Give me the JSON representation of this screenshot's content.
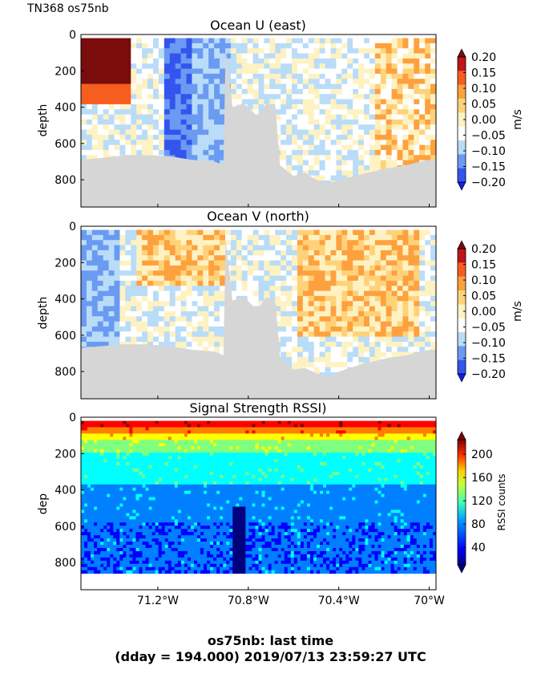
{
  "header": {
    "cruise": "TN368 os75nb"
  },
  "footer": {
    "line1": "os75nb: last time",
    "line2": "(dday = 194.000) 2019/07/13 23:59:27 UTC"
  },
  "colors": {
    "land_fill": "#d6d6d6",
    "jet": [
      "#00007f",
      "#0000ff",
      "#007fff",
      "#00ffff",
      "#7fff7f",
      "#ffff00",
      "#ff7f00",
      "#ff0000",
      "#7f0000"
    ],
    "velocity_levels": [
      "#1a1ae6",
      "#3355ee",
      "#6a9af2",
      "#b9dcf8",
      "#ffffff",
      "#fff2c2",
      "#ffd27a",
      "#fda13f",
      "#f55e1e",
      "#c01616",
      "#7a0c0c"
    ]
  },
  "chart_data": [
    {
      "type": "heatmap",
      "title": "Ocean U (east)",
      "ylabel": "depth",
      "ylim": [
        950,
        0
      ],
      "xlim": [
        -71.54,
        -69.97
      ],
      "yticks": [
        "0",
        "200",
        "400",
        "600",
        "800"
      ],
      "colorbar": {
        "label": "m/s",
        "ticks": [
          "0.20",
          "0.15",
          "0.10",
          "0.05",
          "0.00",
          "−0.05",
          "−0.10",
          "−0.15",
          "−0.20"
        ]
      },
      "bottom_depth": [
        {
          "x": -71.54,
          "y": 690
        },
        {
          "x": -71.45,
          "y": 680
        },
        {
          "x": -71.35,
          "y": 665
        },
        {
          "x": -71.25,
          "y": 665
        },
        {
          "x": -71.15,
          "y": 670
        },
        {
          "x": -71.05,
          "y": 690
        },
        {
          "x": -70.95,
          "y": 700
        },
        {
          "x": -70.91,
          "y": 720
        },
        {
          "x": -70.9,
          "y": 70
        },
        {
          "x": -70.87,
          "y": 400
        },
        {
          "x": -70.82,
          "y": 380
        },
        {
          "x": -70.76,
          "y": 450
        },
        {
          "x": -70.72,
          "y": 380
        },
        {
          "x": -70.68,
          "y": 400
        },
        {
          "x": -70.66,
          "y": 720
        },
        {
          "x": -70.6,
          "y": 780
        },
        {
          "x": -70.55,
          "y": 760
        },
        {
          "x": -70.5,
          "y": 800
        },
        {
          "x": -70.45,
          "y": 820
        },
        {
          "x": -70.4,
          "y": 800
        },
        {
          "x": -70.3,
          "y": 770
        },
        {
          "x": -70.2,
          "y": 740
        },
        {
          "x": -70.1,
          "y": 720
        },
        {
          "x": -70.04,
          "y": 700
        },
        {
          "x": -70.0,
          "y": 690
        },
        {
          "x": -69.97,
          "y": 690
        }
      ]
    },
    {
      "type": "heatmap",
      "title": "Ocean V (north)",
      "ylabel": "depth",
      "ylim": [
        950,
        0
      ],
      "xlim": [
        -71.54,
        -69.97
      ],
      "yticks": [
        "0",
        "200",
        "400",
        "600",
        "800"
      ],
      "colorbar": {
        "label": "m/s",
        "ticks": [
          "0.20",
          "0.15",
          "0.10",
          "0.05",
          "0.00",
          "−0.05",
          "−0.10",
          "−0.15",
          "−0.20"
        ]
      },
      "bottom_depth": [
        {
          "x": -71.54,
          "y": 670
        },
        {
          "x": -71.45,
          "y": 660
        },
        {
          "x": -71.35,
          "y": 650
        },
        {
          "x": -71.25,
          "y": 650
        },
        {
          "x": -71.15,
          "y": 660
        },
        {
          "x": -71.05,
          "y": 680
        },
        {
          "x": -70.95,
          "y": 690
        },
        {
          "x": -70.91,
          "y": 710
        },
        {
          "x": -70.9,
          "y": 70
        },
        {
          "x": -70.87,
          "y": 410
        },
        {
          "x": -70.82,
          "y": 390
        },
        {
          "x": -70.76,
          "y": 460
        },
        {
          "x": -70.72,
          "y": 390
        },
        {
          "x": -70.68,
          "y": 420
        },
        {
          "x": -70.66,
          "y": 720
        },
        {
          "x": -70.6,
          "y": 790
        },
        {
          "x": -70.55,
          "y": 780
        },
        {
          "x": -70.5,
          "y": 810
        },
        {
          "x": -70.45,
          "y": 830
        },
        {
          "x": -70.4,
          "y": 800
        },
        {
          "x": -70.3,
          "y": 760
        },
        {
          "x": -70.2,
          "y": 730
        },
        {
          "x": -70.1,
          "y": 710
        },
        {
          "x": -70.04,
          "y": 690
        },
        {
          "x": -70.0,
          "y": 680
        },
        {
          "x": -69.97,
          "y": 680
        }
      ]
    },
    {
      "type": "heatmap",
      "title": "Signal Strength RSSI)",
      "ylabel": "dep",
      "ylim": [
        950,
        0
      ],
      "xlim": [
        -71.54,
        -69.97
      ],
      "yticks": [
        "0",
        "200",
        "400",
        "600",
        "800"
      ],
      "xticks": [
        {
          "value": -71.2,
          "label": "71.2°W"
        },
        {
          "value": -70.8,
          "label": "70.8°W"
        },
        {
          "value": -70.4,
          "label": "70.4°W"
        },
        {
          "value": -70.0,
          "label": "70°W"
        }
      ],
      "colorbar": {
        "label": "RSSI counts",
        "ticks": [
          "200",
          "160",
          "120",
          "80",
          "40"
        ]
      }
    }
  ]
}
